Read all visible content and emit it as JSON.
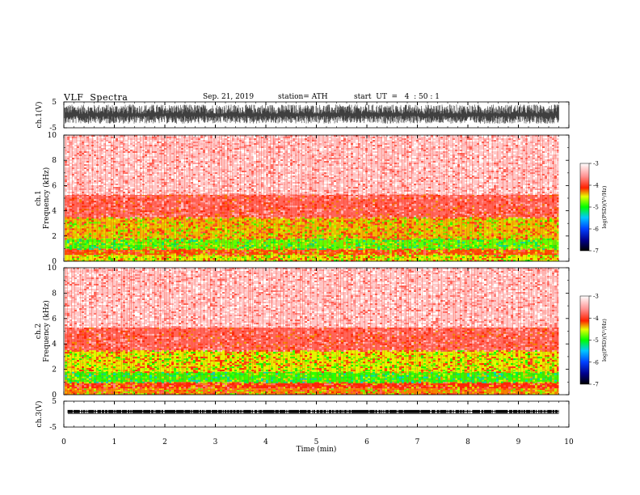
{
  "header": {
    "title": "VLF  Spectra",
    "date": "Sep. 21, 2019",
    "station": "station= ATH",
    "start": "start  UT  =   4  : 50 : 1"
  },
  "chart_data": [
    {
      "type": "line",
      "panel": "waveform ch.1",
      "ylabel": "ch.1(V)",
      "ylim": [
        -5,
        5
      ],
      "yticks": [
        "5",
        "-5"
      ],
      "x_range_min": [
        0,
        9.8
      ],
      "description_of_trace": "dense broadband noise waveform filling roughly -3 to +4 V",
      "color": "#000000"
    },
    {
      "type": "heatmap",
      "panel": "spectrogram ch.1",
      "ylabel": "ch.1\nFrequency (kHz)",
      "ylim": [
        0,
        10
      ],
      "yticks": [
        "0",
        "2",
        "4",
        "6",
        "8",
        "10"
      ],
      "colorbar": {
        "label": "log(PSD)(V²/Hz)",
        "range": [
          -7,
          -3
        ],
        "ticks": [
          "-3",
          "-4",
          "-5",
          "-6",
          "-7"
        ]
      },
      "bands_khz": [
        {
          "from": 0,
          "to": 0.5,
          "level": -4.5
        },
        {
          "from": 0.5,
          "to": 1.0,
          "level": -4.2
        },
        {
          "from": 1.0,
          "to": 1.8,
          "level": -4.8
        },
        {
          "from": 1.8,
          "to": 3.5,
          "level": -4.4
        },
        {
          "from": 3.5,
          "to": 5.3,
          "level": -3.8
        },
        {
          "from": 5.3,
          "to": 10,
          "level": -3.3
        }
      ]
    },
    {
      "type": "heatmap",
      "panel": "spectrogram ch.2",
      "ylabel": "ch.2\nFrequency (kHz)",
      "ylim": [
        0,
        10
      ],
      "yticks": [
        "0",
        "2",
        "4",
        "6",
        "8",
        "10"
      ],
      "colorbar": {
        "label": "log(PSD)(V²/Hz)",
        "range": [
          -7,
          -3
        ],
        "ticks": [
          "-3",
          "-4",
          "-5",
          "-6",
          "-7"
        ]
      },
      "bands_khz": [
        {
          "from": 0,
          "to": 0.5,
          "level": -4.3
        },
        {
          "from": 0.5,
          "to": 1.0,
          "level": -4.1
        },
        {
          "from": 1.0,
          "to": 1.8,
          "level": -4.9
        },
        {
          "from": 1.8,
          "to": 3.5,
          "level": -4.5
        },
        {
          "from": 3.5,
          "to": 5.3,
          "level": -3.8
        },
        {
          "from": 5.3,
          "to": 10,
          "level": -3.3
        }
      ]
    },
    {
      "type": "line",
      "panel": "waveform ch.3",
      "ylabel": "ch.3(V)",
      "ylim": [
        -5,
        5
      ],
      "yticks": [
        "5",
        "-5"
      ],
      "description_of_trace": "thin band near +1 V",
      "color": "#000000"
    }
  ],
  "xaxis": {
    "label": "Time  (min)",
    "range": [
      0,
      10
    ],
    "ticks": [
      "0",
      "1",
      "2",
      "3",
      "4",
      "5",
      "6",
      "7",
      "8",
      "9",
      "10"
    ]
  }
}
